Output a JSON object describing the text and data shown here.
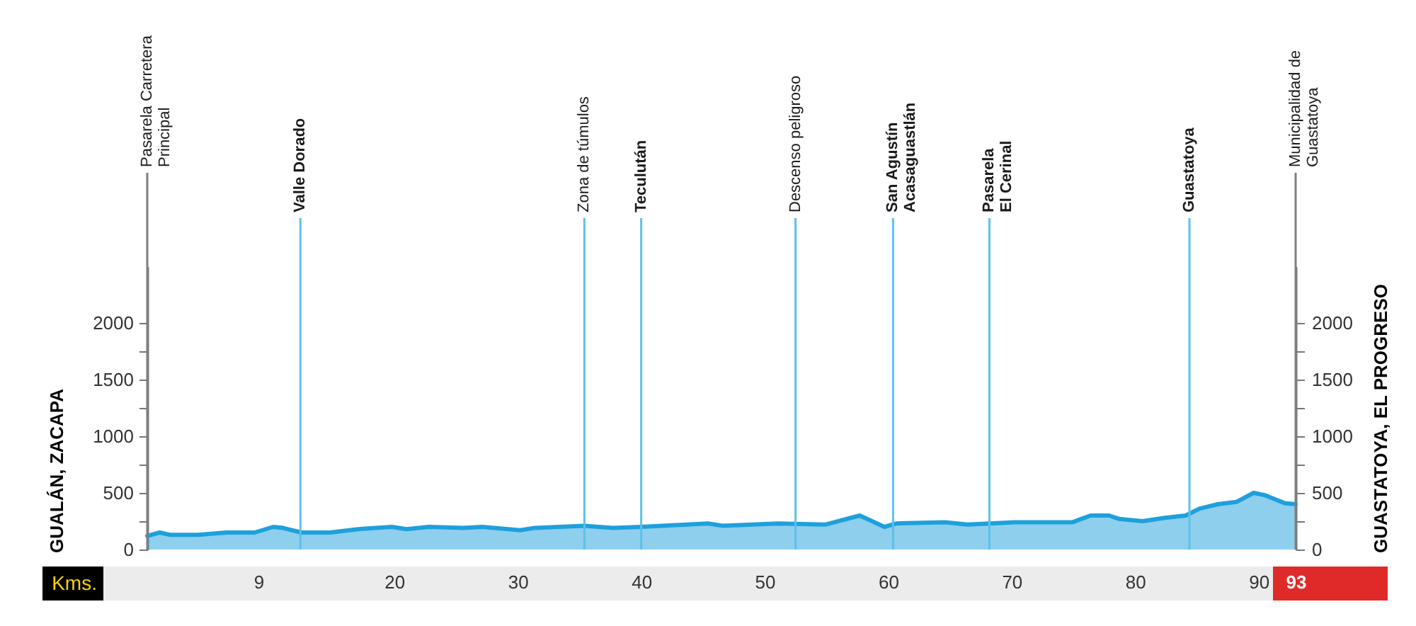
{
  "chart_data": {
    "type": "area",
    "xlabel": "Kms.",
    "ylabel": "GUALÁN, ZACAPA",
    "y2label": "GUASTATOYA, EL PROGRESO",
    "x": [
      0,
      1.0,
      1.8,
      4.1,
      6.4,
      8.7,
      10.2,
      11.0,
      12.5,
      14.8,
      17.1,
      19.8,
      21.0,
      22.8,
      25.6,
      27.1,
      30.2,
      31.3,
      35.4,
      37.7,
      40.0,
      45.4,
      46.6,
      51.1,
      54.9,
      57.7,
      59.7,
      60.7,
      64.6,
      66.4,
      70.3,
      74.9,
      76.4,
      77.9,
      78.7,
      80.6,
      82.4,
      84.1,
      85.2,
      86.7,
      88.2,
      89.6,
      90.5,
      92.1,
      93
    ],
    "series": [
      {
        "color": "#1ea0dc",
        "values": [
          120,
          150,
          130,
          130,
          150,
          150,
          200,
          190,
          150,
          150,
          180,
          200,
          180,
          200,
          190,
          200,
          170,
          190,
          210,
          190,
          200,
          230,
          210,
          230,
          220,
          300,
          200,
          230,
          240,
          220,
          240,
          240,
          300,
          300,
          270,
          250,
          280,
          300,
          360,
          400,
          420,
          500,
          480,
          410,
          400
        ]
      }
    ],
    "xlim": [
      0,
      93
    ],
    "xticks": [
      9,
      20,
      30,
      40,
      50,
      60,
      70,
      80,
      90,
      93
    ],
    "ylim": [
      0,
      2500
    ],
    "yticks": [
      0,
      {
        "value": 250,
        "label": null
      },
      500,
      {
        "value": 750,
        "label": null
      },
      1000,
      {
        "value": 1250,
        "label": null
      },
      1500,
      {
        "value": 1750,
        "label": null
      },
      2000
    ],
    "y2lim": [
      0,
      2500
    ],
    "y2ticks": [
      0,
      {
        "value": 250,
        "label": null
      },
      500,
      {
        "value": 750,
        "label": null
      },
      1000,
      {
        "value": 1250,
        "label": null
      },
      1500,
      {
        "value": 1750,
        "label": null
      },
      2000
    ],
    "ref_lines": [
      {
        "axis": "x",
        "value": 0,
        "label": "Pasarela Carretera\nPrincipal",
        "color": "#7f7f7f"
      },
      {
        "axis": "x",
        "value": 12.4,
        "label": "Valle Dorado",
        "color": "#5cc1ea"
      },
      {
        "axis": "x",
        "value": 35.4,
        "label": "Zona de túmulos",
        "color": "#5cc1ea"
      },
      {
        "axis": "x",
        "value": 40.0,
        "label": "Teculután",
        "color": "#5cc1ea"
      },
      {
        "axis": "x",
        "value": 52.5,
        "label": "Descenso peligroso",
        "color": "#5cc1ea"
      },
      {
        "axis": "x",
        "value": 60.4,
        "label": "San Agustín\nAcasaguastlán",
        "color": "#5cc1ea"
      },
      {
        "axis": "x",
        "value": 68.2,
        "label": "Pasarela\nEl Cerinal",
        "color": "#5cc1ea"
      },
      {
        "axis": "x",
        "value": 84.4,
        "label": "Guastatoya",
        "color": "#5cc1ea"
      },
      {
        "axis": "x",
        "value": 93,
        "label": "Municipalidad de\nGuastatoya",
        "color": "#7f7f7f"
      }
    ],
    "grid": false,
    "legend": false
  }
}
